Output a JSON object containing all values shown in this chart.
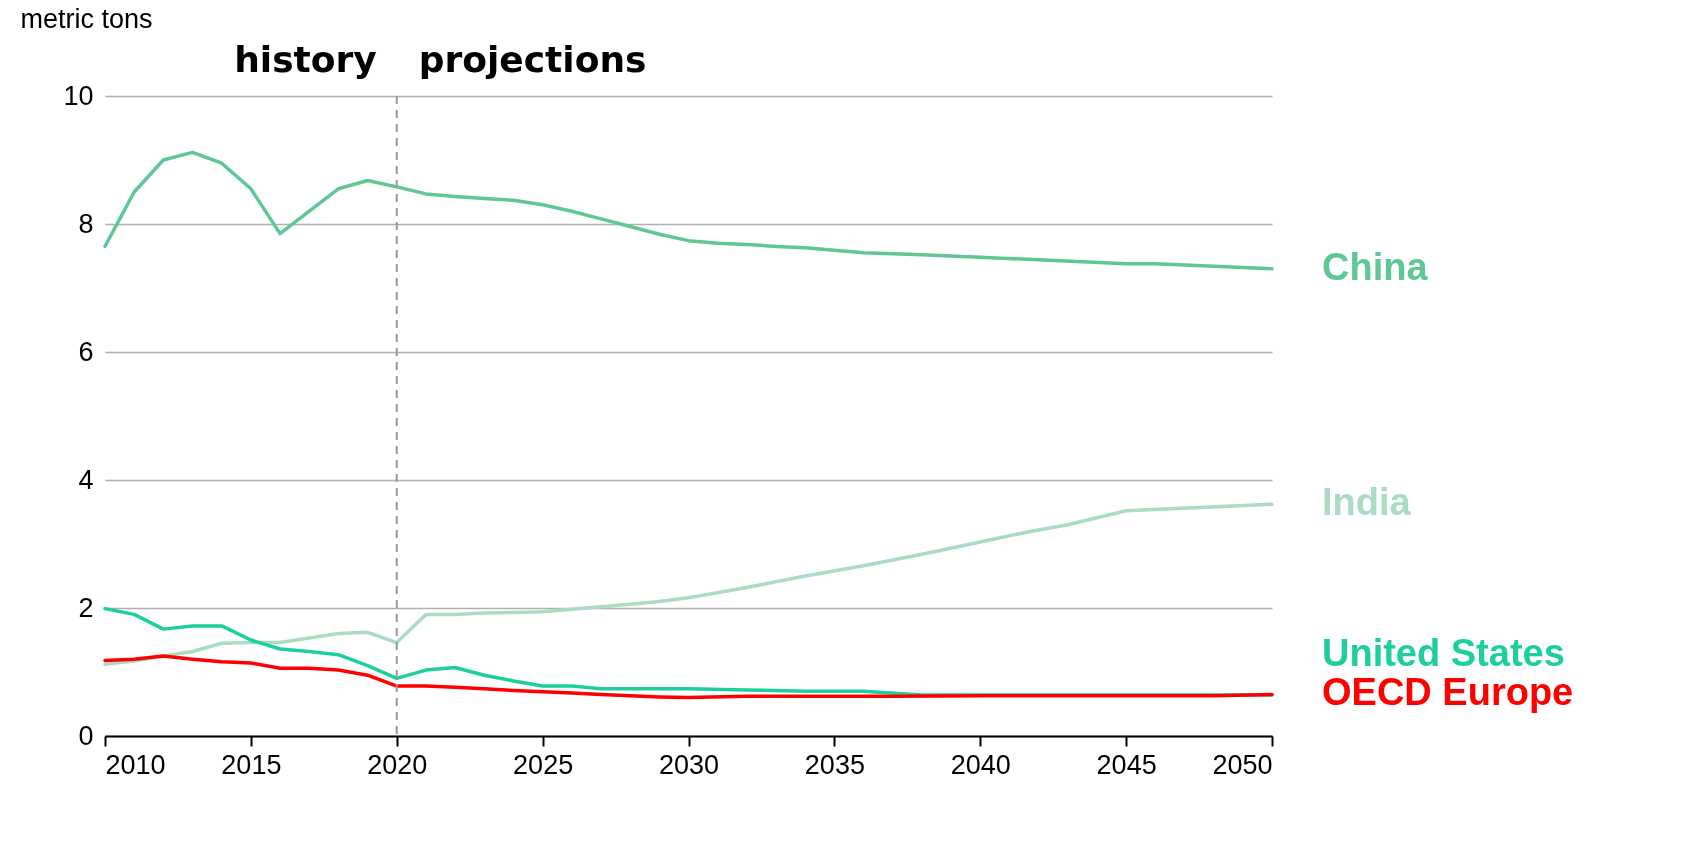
{
  "chart_data": {
    "type": "line",
    "ylabel": "metric tons",
    "xlim": [
      2010,
      2050
    ],
    "xticks": [
      2010,
      2015,
      2020,
      2025,
      2030,
      2035,
      2040,
      2045,
      2050
    ],
    "ylim": [
      0,
      10
    ],
    "yticks": [
      0,
      2,
      4,
      6,
      8,
      10
    ],
    "grid": "y",
    "legend": false,
    "marker": "none",
    "line_style": "solid",
    "series": [
      {
        "name": "China",
        "color": "#5ec794",
        "x": [
          2010,
          2011,
          2012,
          2013,
          2014,
          2015,
          2016,
          2017,
          2018,
          2019,
          2020,
          2021,
          2022,
          2023,
          2024,
          2025,
          2026,
          2027,
          2028,
          2029,
          2030,
          2031,
          2032,
          2033,
          2034,
          2035,
          2036,
          2038,
          2040,
          2042,
          2045,
          2046,
          2050
        ],
        "values": [
          7.65,
          8.5,
          9.0,
          9.12,
          8.95,
          8.55,
          7.85,
          8.2,
          8.55,
          8.68,
          8.58,
          8.47,
          8.43,
          8.4,
          8.37,
          8.3,
          8.2,
          8.08,
          7.96,
          7.84,
          7.74,
          7.7,
          7.68,
          7.65,
          7.63,
          7.59,
          7.55,
          7.52,
          7.48,
          7.44,
          7.38,
          7.38,
          7.3
        ]
      },
      {
        "name": "India",
        "color": "#a9dcc1",
        "x": [
          2010,
          2011,
          2012,
          2013,
          2014,
          2015,
          2016,
          2017,
          2018,
          2019,
          2020,
          2021,
          2022,
          2023,
          2024,
          2025,
          2026,
          2027,
          2028,
          2029,
          2030,
          2032,
          2034,
          2036,
          2038,
          2040,
          2041,
          2042,
          2043,
          2045,
          2050
        ],
        "values": [
          1.12,
          1.17,
          1.25,
          1.32,
          1.45,
          1.46,
          1.46,
          1.53,
          1.6,
          1.62,
          1.46,
          1.9,
          1.9,
          1.92,
          1.93,
          1.94,
          1.98,
          2.02,
          2.06,
          2.1,
          2.16,
          2.32,
          2.5,
          2.66,
          2.84,
          3.03,
          3.13,
          3.22,
          3.3,
          3.52,
          3.62
        ]
      },
      {
        "name": "United States",
        "color": "#1ccf9c",
        "x": [
          2010,
          2011,
          2012,
          2013,
          2014,
          2015,
          2016,
          2017,
          2018,
          2019,
          2020,
          2021,
          2022,
          2023,
          2024,
          2025,
          2026,
          2027,
          2028,
          2029,
          2030,
          2032,
          2034,
          2036,
          2038,
          2040,
          2050
        ],
        "values": [
          1.99,
          1.9,
          1.67,
          1.72,
          1.72,
          1.5,
          1.36,
          1.32,
          1.27,
          1.1,
          0.9,
          1.03,
          1.07,
          0.95,
          0.86,
          0.78,
          0.78,
          0.74,
          0.74,
          0.74,
          0.74,
          0.72,
          0.7,
          0.7,
          0.64,
          0.64,
          0.64
        ]
      },
      {
        "name": "OECD Europe",
        "color": "#ff0000",
        "x": [
          2010,
          2011,
          2012,
          2013,
          2014,
          2015,
          2016,
          2017,
          2018,
          2019,
          2020,
          2021,
          2022,
          2023,
          2024,
          2025,
          2026,
          2027,
          2028,
          2029,
          2030,
          2032,
          2035,
          2037,
          2040,
          2048,
          2050
        ],
        "values": [
          1.18,
          1.2,
          1.25,
          1.2,
          1.16,
          1.14,
          1.06,
          1.06,
          1.03,
          0.95,
          0.78,
          0.78,
          0.76,
          0.74,
          0.71,
          0.69,
          0.67,
          0.65,
          0.63,
          0.61,
          0.6,
          0.62,
          0.62,
          0.62,
          0.63,
          0.63,
          0.65
        ]
      }
    ],
    "ref_lines": [
      {
        "axis": "x",
        "value": 2020,
        "color": "#999999",
        "line_style": "dashed"
      }
    ],
    "annotations": [
      "history",
      "projections"
    ]
  }
}
